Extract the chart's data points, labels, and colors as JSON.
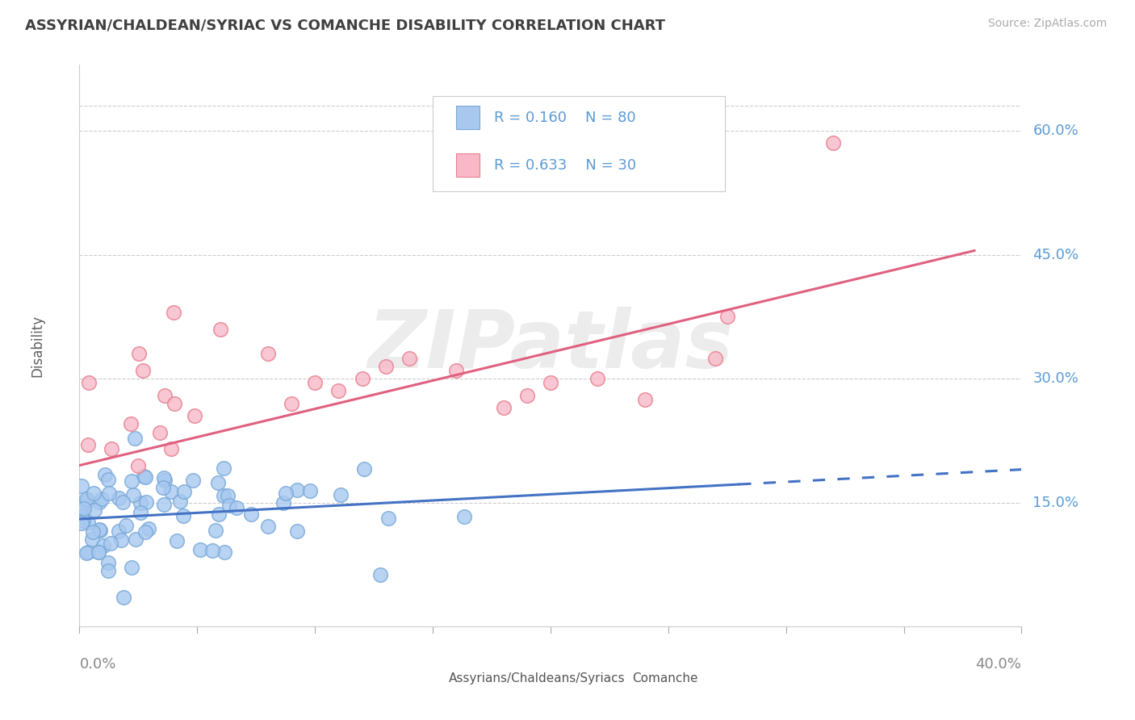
{
  "title": "ASSYRIAN/CHALDEAN/SYRIAC VS COMANCHE DISABILITY CORRELATION CHART",
  "source": "Source: ZipAtlas.com",
  "ylabel": "Disability",
  "yticks": [
    0.15,
    0.3,
    0.45,
    0.6
  ],
  "ytick_labels": [
    "15.0%",
    "30.0%",
    "45.0%",
    "60.0%"
  ],
  "xlim": [
    0.0,
    0.4
  ],
  "ylim": [
    0.0,
    0.68
  ],
  "blue_scatter_color": "#a8c8f0",
  "blue_scatter_edge": "#7aaad8",
  "pink_scatter_color": "#f8b8c8",
  "pink_scatter_edge": "#e88090",
  "blue_line_color": "#4472c4",
  "pink_line_color": "#e06080",
  "blue_R": 0.16,
  "blue_N": 80,
  "pink_R": 0.633,
  "pink_N": 30,
  "watermark": "ZIPatlas",
  "legend_label_blue": "Assyrians/Chaldeans/Syriacs",
  "legend_label_pink": "Comanche",
  "background_color": "#ffffff",
  "grid_color": "#cccccc",
  "text_color_blue": "#5b9bd5",
  "title_color": "#404040"
}
